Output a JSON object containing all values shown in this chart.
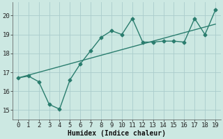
{
  "line1_x": [
    0,
    1,
    2,
    3,
    4,
    5,
    6,
    7,
    8,
    9,
    10,
    11,
    12,
    13,
    14,
    15,
    16,
    17,
    18,
    19
  ],
  "line1_y": [
    16.7,
    16.85,
    17.0,
    17.15,
    17.3,
    17.45,
    17.6,
    17.75,
    17.9,
    18.05,
    18.2,
    18.35,
    18.5,
    18.65,
    18.8,
    18.95,
    19.1,
    19.25,
    19.4,
    19.55
  ],
  "line2_x": [
    0,
    1,
    2,
    3,
    4,
    5,
    6,
    7,
    8,
    9,
    10,
    11,
    12,
    13,
    14,
    15,
    16,
    17,
    18,
    19
  ],
  "line2_y": [
    16.7,
    16.8,
    16.5,
    15.3,
    15.05,
    16.6,
    17.45,
    18.15,
    18.85,
    19.2,
    19.0,
    19.85,
    18.6,
    18.6,
    18.65,
    18.65,
    18.6,
    19.85,
    19.0,
    20.3
  ],
  "color": "#2a7d6e",
  "bg_color": "#cce8e2",
  "grid_color": "#aacccc",
  "xlabel": "Humidex (Indice chaleur)",
  "xlim": [
    -0.5,
    19.5
  ],
  "ylim": [
    14.5,
    20.7
  ],
  "yticks": [
    15,
    16,
    17,
    18,
    19,
    20
  ],
  "xticks": [
    0,
    1,
    2,
    3,
    4,
    5,
    6,
    7,
    8,
    9,
    10,
    11,
    12,
    13,
    14,
    15,
    16,
    17,
    18,
    19
  ],
  "marker": "D",
  "markersize": 2.5,
  "linewidth": 1.0,
  "font_family": "monospace",
  "xlabel_fontsize": 7,
  "tick_fontsize": 6.5
}
